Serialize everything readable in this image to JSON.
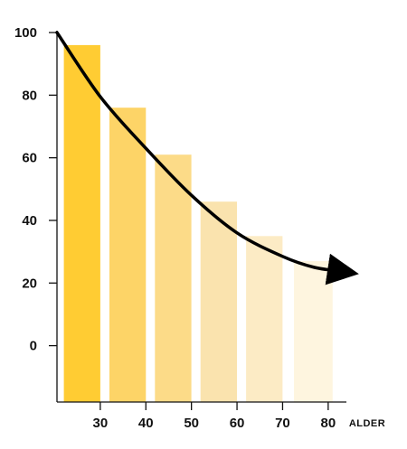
{
  "chart_data": {
    "type": "bar",
    "title": "",
    "xlabel": "ALDER",
    "ylabel": "",
    "ylim": [
      -18,
      100
    ],
    "xlim": [
      20.5,
      84
    ],
    "y_ticks": [
      0,
      20,
      40,
      60,
      80,
      100
    ],
    "x_ticks": [
      30,
      40,
      50,
      60,
      70,
      80
    ],
    "y_tick_labels": [
      "0",
      "20",
      "40",
      "60",
      "80",
      "100"
    ],
    "x_tick_labels": [
      "30",
      "40",
      "50",
      "60",
      "70",
      "80"
    ],
    "grid": false,
    "legend": "none",
    "bars": [
      {
        "x_start": 22,
        "x_end": 30,
        "value": 96,
        "color": "#FFCC33"
      },
      {
        "x_start": 32,
        "x_end": 40,
        "value": 76,
        "color": "#FDD467"
      },
      {
        "x_start": 42,
        "x_end": 50,
        "value": 61,
        "color": "#FCDB88"
      },
      {
        "x_start": 52,
        "x_end": 60,
        "value": 46,
        "color": "#FAE3AE"
      },
      {
        "x_start": 62,
        "x_end": 70,
        "value": 35,
        "color": "#FCEBC5"
      },
      {
        "x_start": 72.5,
        "x_end": 81,
        "value": 27,
        "color": "#FEF5DF"
      }
    ],
    "trend_curve": {
      "points": [
        [
          20.5,
          100
        ],
        [
          30,
          79.5
        ],
        [
          40,
          63
        ],
        [
          50,
          48
        ],
        [
          60,
          36
        ],
        [
          70,
          28.5
        ],
        [
          77,
          25
        ],
        [
          84,
          23.5
        ]
      ],
      "color": "#000000",
      "arrow": "end"
    }
  }
}
